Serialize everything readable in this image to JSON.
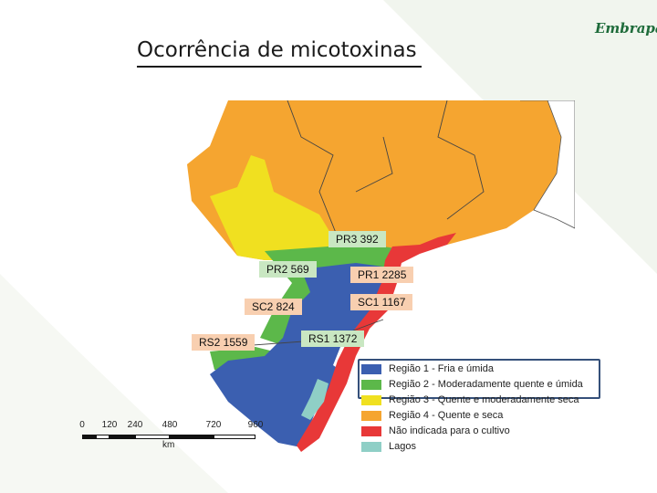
{
  "slide": {
    "title": "Ocorrência de micotoxinas",
    "logo_text": "Embrapa"
  },
  "map_labels": [
    {
      "text": "PR3 392",
      "style": "green"
    },
    {
      "text": "PR2 569",
      "style": "green"
    },
    {
      "text": "PR1 2285",
      "style": "peach"
    },
    {
      "text": "SC2 824",
      "style": "peach"
    },
    {
      "text": "SC1 1167",
      "style": "peach"
    },
    {
      "text": "RS2 1559",
      "style": "peach"
    },
    {
      "text": "RS1 1372",
      "style": "green"
    }
  ],
  "legend": {
    "items": [
      {
        "label": "Região 1 - Fria e úmida",
        "color": "#3b5fb0"
      },
      {
        "label": "Região 2 - Moderadamente quente e úmida",
        "color": "#5cb84a"
      },
      {
        "label": "Região 3 - Quente e moderadamente seca",
        "color": "#f0e020"
      },
      {
        "label": "Região 4 - Quente e seca",
        "color": "#f5a530"
      },
      {
        "label": "Não indicada para o cultivo",
        "color": "#e83838"
      },
      {
        "label": "Lagos",
        "color": "#8fcfc6"
      }
    ]
  },
  "scale_bar": {
    "ticks": [
      "0",
      "120",
      "240",
      "480",
      "720",
      "960"
    ],
    "unit": "km"
  },
  "colors": {
    "region1": "#3b5fb0",
    "region2": "#5cb84a",
    "region3": "#f0e020",
    "region4": "#f5a530",
    "not_indicated": "#e83838",
    "lakes": "#8fcfc6",
    "label_green": "#c9e7c2",
    "label_peach": "#f8cfb0"
  }
}
